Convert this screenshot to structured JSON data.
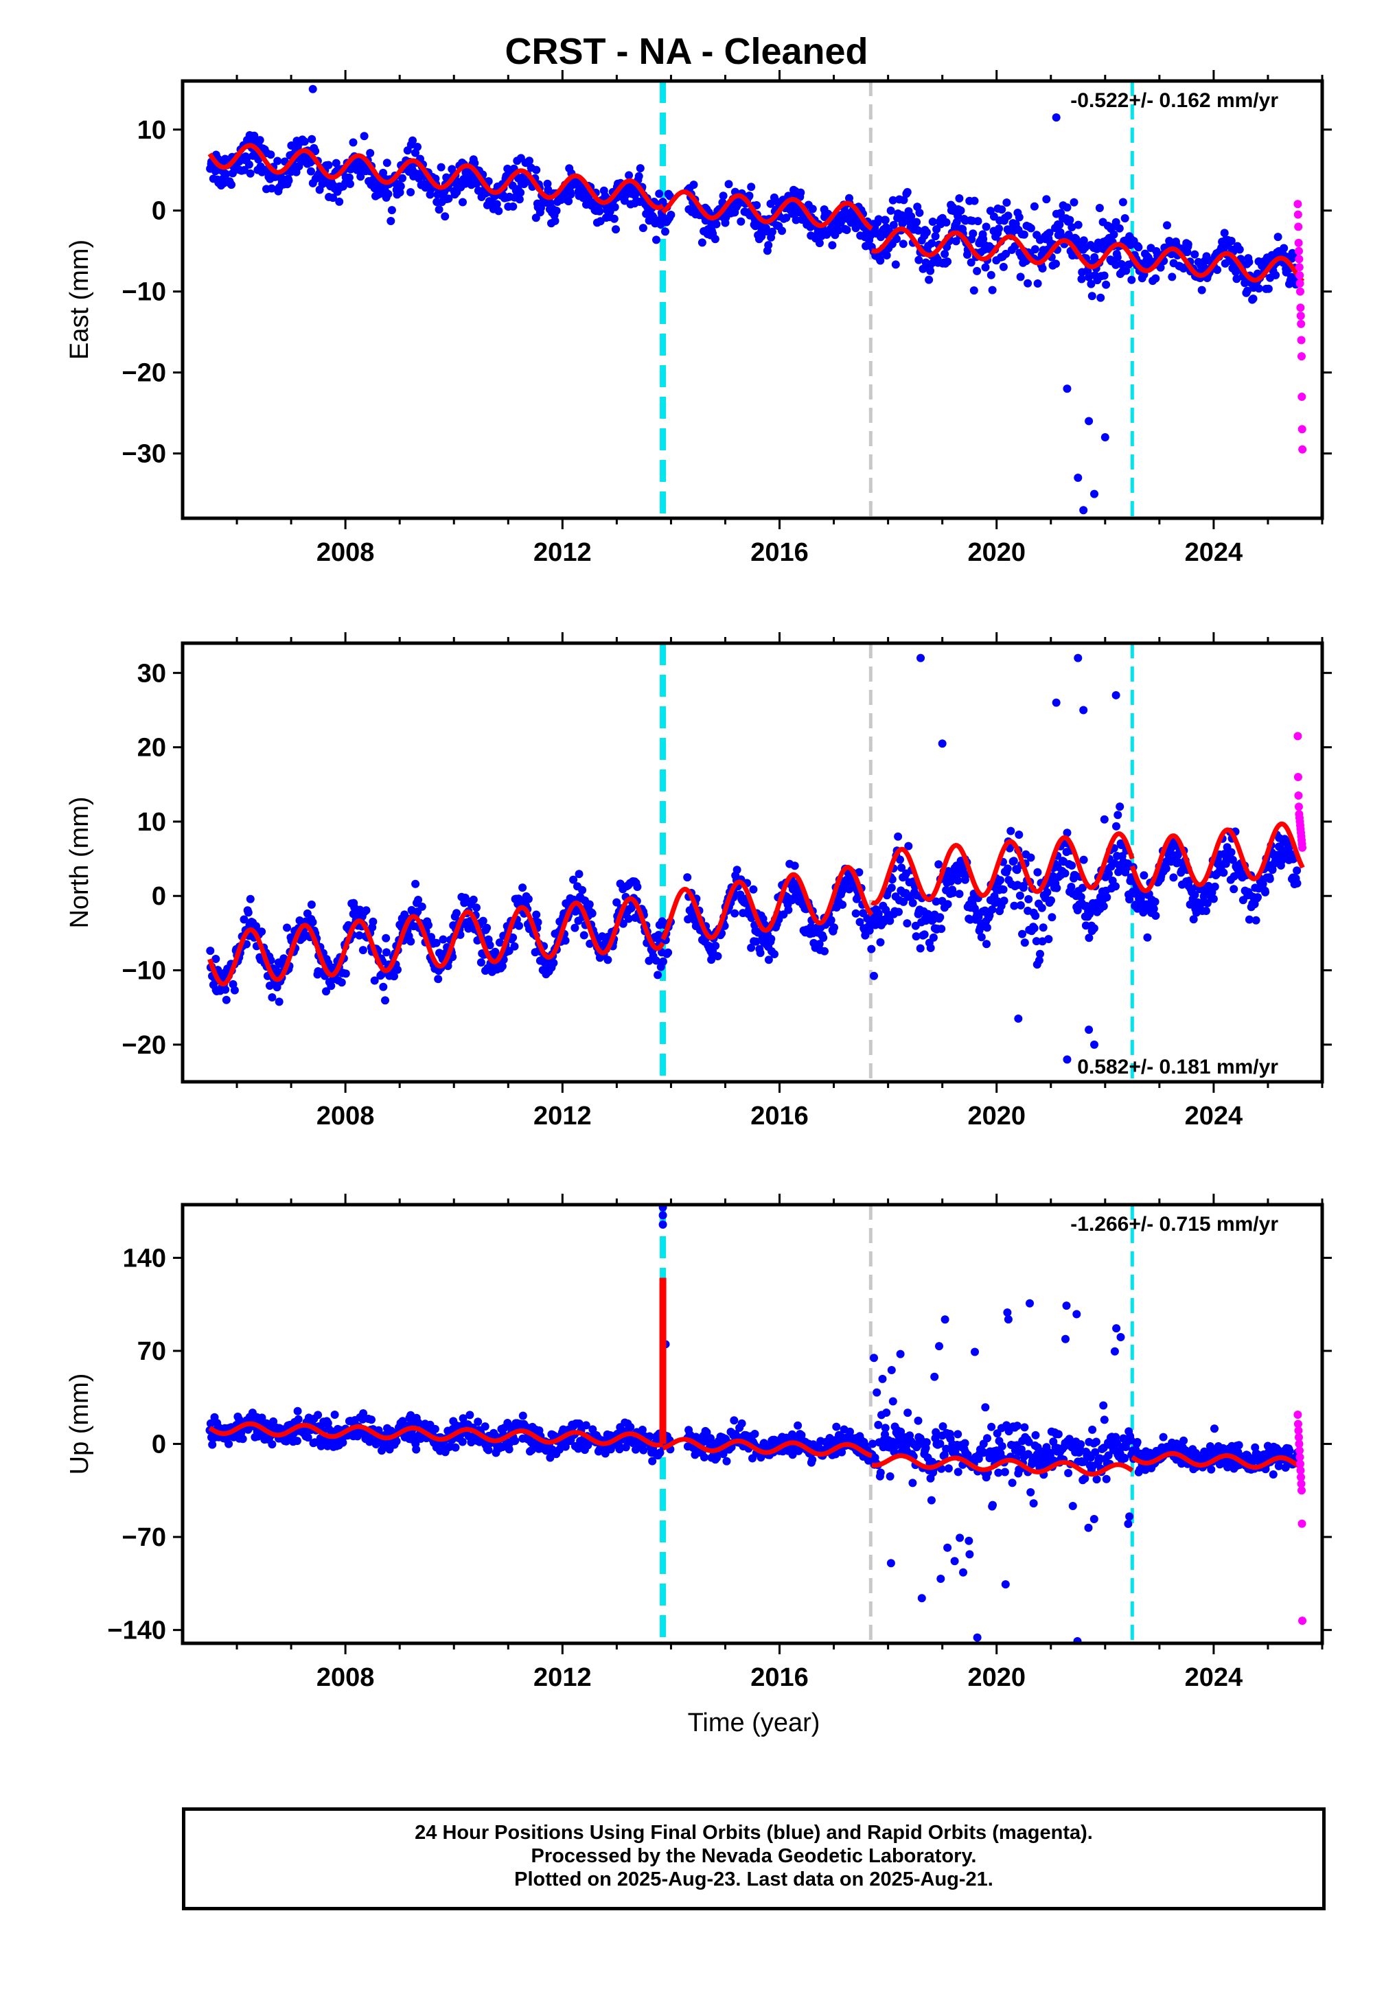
{
  "title": "CRST  - NA - Cleaned",
  "xlabel": "Time (year)",
  "footer": {
    "line1": "24 Hour Positions Using Final Orbits (blue) and Rapid Orbits (magenta).",
    "line2": "Processed by the Nevada Geodetic Laboratory.",
    "line3": "Plotted on 2025-Aug-23. Last data on 2025-Aug-21."
  },
  "colors": {
    "final_orbits": "#0000ff",
    "rapid_orbits": "#ff00ff",
    "model": "#ff0000",
    "equipment_change": "#00e5ee",
    "earthquake": "#c8c8c8"
  },
  "chart_data": [
    {
      "type": "scatter",
      "component": "east",
      "ylabel": "East (mm)",
      "xlim": [
        2005.0,
        2026.0
      ],
      "ylim": [
        -38,
        16
      ],
      "xticks": [
        2008,
        2012,
        2016,
        2020,
        2024
      ],
      "yticks": [
        10,
        0,
        -10,
        -20,
        -30
      ],
      "velocity": "-0.522+/- 0.162 mm/yr",
      "velocity_position": "top-right",
      "grid": false,
      "series": [
        {
          "name": "Final Orbits (blue)",
          "color": "#0000ff",
          "x_range": [
            2005.5,
            2025.55
          ],
          "start_mean": 6.5,
          "trend": -0.7,
          "annual_amplitude": 1.5,
          "noise_sd": 1.2,
          "noisy_period": [
            2017.7,
            2022.5
          ],
          "noisy_period_sd": 3.0,
          "gap": [
            2014.0,
            2014.3
          ]
        },
        {
          "name": "Rapid Orbits (magenta)",
          "color": "#ff00ff",
          "x_range": [
            2025.55,
            2025.64
          ],
          "values": [
            0.8,
            -0.5,
            -2,
            -4,
            -5,
            -6,
            -7,
            -8,
            -9,
            -10,
            -12,
            -13,
            -14,
            -16,
            -18,
            -23,
            -27,
            -29.5
          ]
        },
        {
          "name": "Model",
          "color": "#ff0000",
          "segments": [
            [
              2005.5,
              2013.85,
              7.0,
              1.8
            ],
            [
              2013.85,
              2017.7,
              1.0,
              -0.8
            ],
            [
              2017.7,
              2022.5,
              -3.5,
              -5.8
            ],
            [
              2022.5,
              2025.64,
              -5.8,
              -7.6
            ]
          ],
          "annual_amplitude": 1.5
        }
      ],
      "vertical_lines": [
        {
          "x": 2013.85,
          "kind": "equipment_change",
          "style": "thick-dashed"
        },
        {
          "x": 2017.68,
          "kind": "earthquake",
          "style": "dashed"
        },
        {
          "x": 2022.5,
          "kind": "equipment_change",
          "style": "dashed"
        }
      ],
      "outliers": [
        [
          2007.4,
          15
        ],
        [
          2021.1,
          11.5
        ],
        [
          2021.5,
          -33
        ],
        [
          2021.6,
          -37
        ],
        [
          2021.8,
          -35
        ],
        [
          2021.7,
          -26
        ],
        [
          2022.0,
          -28
        ],
        [
          2021.3,
          -22
        ]
      ]
    },
    {
      "type": "scatter",
      "component": "north",
      "ylabel": "North (mm)",
      "xlim": [
        2005.0,
        2026.0
      ],
      "ylim": [
        -25,
        34
      ],
      "xticks": [
        2008,
        2012,
        2016,
        2020,
        2024
      ],
      "yticks": [
        30,
        20,
        10,
        0,
        -10,
        -20
      ],
      "velocity": "0.582+/- 0.181 mm/yr",
      "velocity_position": "bottom-right",
      "grid": false,
      "series": [
        {
          "name": "Final Orbits (blue)",
          "color": "#0000ff",
          "x_range": [
            2005.5,
            2025.55
          ],
          "start_mean": -8.5,
          "trend": 0.6,
          "annual_amplitude": 3.5,
          "noise_sd": 1.5,
          "noisy_period": [
            2017.7,
            2022.5
          ],
          "noisy_period_sd": 3.5,
          "gap": [
            2014.0,
            2014.3
          ]
        },
        {
          "name": "Rapid Orbits (magenta)",
          "color": "#ff00ff",
          "x_range": [
            2025.55,
            2025.64
          ],
          "values": [
            21.5,
            16,
            13.5,
            12,
            11,
            10.5,
            10,
            9.5,
            9,
            8.5,
            8,
            7.5,
            7,
            6.5
          ]
        },
        {
          "name": "Model",
          "color": "#ff0000",
          "segments": [
            [
              2005.5,
              2013.85,
              -8.5,
              -3.5
            ],
            [
              2013.85,
              2017.7,
              -3.0,
              0.8
            ],
            [
              2017.7,
              2022.5,
              2.5,
              5.0
            ],
            [
              2022.5,
              2025.64,
              4.0,
              6.5
            ]
          ],
          "annual_amplitude": 3.5
        }
      ],
      "vertical_lines": [
        {
          "x": 2013.85,
          "kind": "equipment_change",
          "style": "thick-dashed"
        },
        {
          "x": 2017.68,
          "kind": "earthquake",
          "style": "dashed"
        },
        {
          "x": 2022.5,
          "kind": "equipment_change",
          "style": "dashed"
        }
      ],
      "outliers": [
        [
          2018.6,
          32
        ],
        [
          2021.5,
          32
        ],
        [
          2021.1,
          26
        ],
        [
          2021.6,
          25
        ],
        [
          2019.0,
          20.5
        ],
        [
          2022.2,
          27
        ],
        [
          2021.3,
          -22
        ],
        [
          2021.8,
          -20
        ],
        [
          2020.4,
          -16.5
        ],
        [
          2021.7,
          -18
        ]
      ]
    },
    {
      "type": "scatter",
      "component": "up",
      "ylabel": "Up (mm)",
      "xlim": [
        2005.0,
        2026.0
      ],
      "ylim": [
        -150,
        180
      ],
      "xticks": [
        2008,
        2012,
        2016,
        2020,
        2024
      ],
      "yticks": [
        140,
        70,
        0,
        -70,
        -140
      ],
      "velocity": "-1.266+/- 0.715 mm/yr",
      "velocity_position": "top-right",
      "grid": false,
      "series": [
        {
          "name": "Final Orbits (blue)",
          "color": "#0000ff",
          "x_range": [
            2005.5,
            2025.55
          ],
          "start_mean": 12,
          "trend": -1.2,
          "annual_amplitude": 4,
          "noise_sd": 5,
          "noisy_period": [
            2017.7,
            2022.5
          ],
          "noisy_period_sd": 60,
          "gap": [
            2014.0,
            2014.3
          ]
        },
        {
          "name": "Rapid Orbits (magenta)",
          "color": "#ff00ff",
          "x_range": [
            2025.55,
            2025.64
          ],
          "values": [
            22,
            15,
            10,
            5,
            0,
            -5,
            -10,
            -15,
            -20,
            -25,
            -30,
            -35,
            -60,
            -133
          ]
        },
        {
          "name": "Model",
          "color": "#ff0000",
          "segments": [
            [
              2005.5,
              2013.85,
              12,
              3
            ],
            [
              2013.85,
              2017.7,
              0,
              -5
            ],
            [
              2017.7,
              2022.5,
              -12,
              -20
            ],
            [
              2022.5,
              2025.64,
              -10,
              -15
            ]
          ],
          "annual_amplitude": 4,
          "spike": {
            "x": 2013.85,
            "from": 0,
            "to": 125
          }
        }
      ],
      "vertical_lines": [
        {
          "x": 2013.85,
          "kind": "equipment_change",
          "style": "thick-dashed"
        },
        {
          "x": 2017.68,
          "kind": "earthquake",
          "style": "dashed"
        },
        {
          "x": 2022.5,
          "kind": "equipment_change",
          "style": "dashed"
        }
      ],
      "outliers": [
        [
          2013.85,
          178
        ],
        [
          2013.85,
          172
        ],
        [
          2013.85,
          165
        ],
        [
          2013.9,
          75
        ]
      ]
    }
  ]
}
